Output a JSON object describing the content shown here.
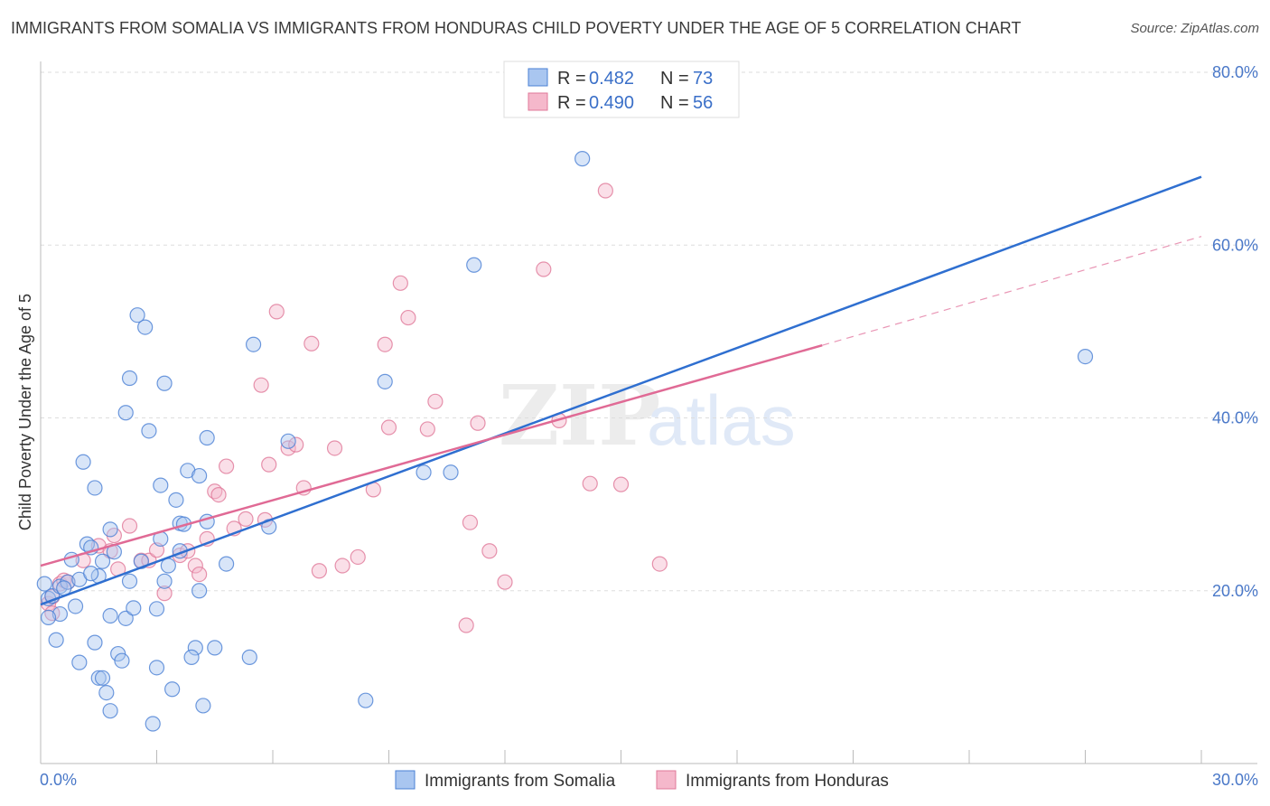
{
  "header": {
    "title": "IMMIGRANTS FROM SOMALIA VS IMMIGRANTS FROM HONDURAS CHILD POVERTY UNDER THE AGE OF 5 CORRELATION CHART",
    "source": "Source: ZipAtlas.com"
  },
  "watermark": {
    "zip": "ZIP",
    "atlas": "atlas"
  },
  "colors": {
    "somalia_fill": "#a9c6f0",
    "somalia_stroke": "#4a80d4",
    "somalia_line": "#2f6fd0",
    "honduras_fill": "#f5b8cb",
    "honduras_stroke": "#e07898",
    "honduras_line": "#e06a95",
    "tick_text": "#4a78c8",
    "grid": "#dddddd"
  },
  "chart_data": {
    "type": "scatter",
    "title": "IMMIGRANTS FROM SOMALIA VS IMMIGRANTS FROM HONDURAS CHILD POVERTY UNDER THE AGE OF 5 CORRELATION CHART",
    "xlabel": "",
    "ylabel": "Child Poverty Under the Age of 5",
    "xlim": [
      0,
      30
    ],
    "ylim": [
      0,
      80
    ],
    "x_tick_labels": [
      "0.0%",
      "30.0%"
    ],
    "y_ticks": [
      20,
      40,
      60,
      80
    ],
    "y_tick_labels": [
      "20.0%",
      "40.0%",
      "60.0%",
      "80.0%"
    ],
    "grid": true,
    "legend_position": "top-center",
    "legend": [
      {
        "series": "Immigrants from Somalia",
        "r_label": "R =",
        "r_value": "0.482",
        "n_label": "N =",
        "n_value": "73"
      },
      {
        "series": "Immigrants from Honduras",
        "r_label": "R =",
        "r_value": "0.490",
        "n_label": "N =",
        "n_value": "56"
      }
    ],
    "series": [
      {
        "name": "Immigrants from Somalia",
        "trend": {
          "x": [
            0,
            30
          ],
          "y": [
            18.4,
            67.9
          ],
          "dashed_extension": false
        },
        "points": [
          [
            0.1,
            20.8
          ],
          [
            0.2,
            19.1
          ],
          [
            0.3,
            19.4
          ],
          [
            0.5,
            20.5
          ],
          [
            0.5,
            17.3
          ],
          [
            0.4,
            14.3
          ],
          [
            0.7,
            21.0
          ],
          [
            0.6,
            20.3
          ],
          [
            0.8,
            23.6
          ],
          [
            1.0,
            21.3
          ],
          [
            0.9,
            18.2
          ],
          [
            1.2,
            25.4
          ],
          [
            1.3,
            25.0
          ],
          [
            1.1,
            34.9
          ],
          [
            1.4,
            31.9
          ],
          [
            1.6,
            23.4
          ],
          [
            1.5,
            21.7
          ],
          [
            1.8,
            27.1
          ],
          [
            1.9,
            24.5
          ],
          [
            1.8,
            17.1
          ],
          [
            2.0,
            12.7
          ],
          [
            1.5,
            9.9
          ],
          [
            1.6,
            9.9
          ],
          [
            1.7,
            8.2
          ],
          [
            1.8,
            6.1
          ],
          [
            1.0,
            11.7
          ],
          [
            1.4,
            14.0
          ],
          [
            2.1,
            11.9
          ],
          [
            2.2,
            16.8
          ],
          [
            2.3,
            21.1
          ],
          [
            2.4,
            18.0
          ],
          [
            2.6,
            23.4
          ],
          [
            2.7,
            50.5
          ],
          [
            2.5,
            51.9
          ],
          [
            2.3,
            44.6
          ],
          [
            2.2,
            40.6
          ],
          [
            2.8,
            38.5
          ],
          [
            3.2,
            44.0
          ],
          [
            3.1,
            32.2
          ],
          [
            3.3,
            22.9
          ],
          [
            3.2,
            21.1
          ],
          [
            3.0,
            17.9
          ],
          [
            3.0,
            11.1
          ],
          [
            2.9,
            4.6
          ],
          [
            3.5,
            30.5
          ],
          [
            3.6,
            27.8
          ],
          [
            3.7,
            27.7
          ],
          [
            3.6,
            24.6
          ],
          [
            3.8,
            33.9
          ],
          [
            4.1,
            33.3
          ],
          [
            4.3,
            37.7
          ],
          [
            4.3,
            28.0
          ],
          [
            4.1,
            20.0
          ],
          [
            4.0,
            13.4
          ],
          [
            3.9,
            12.3
          ],
          [
            4.5,
            13.4
          ],
          [
            4.2,
            6.7
          ],
          [
            3.4,
            8.6
          ],
          [
            4.8,
            23.1
          ],
          [
            5.4,
            12.3
          ],
          [
            5.5,
            48.5
          ],
          [
            5.9,
            27.4
          ],
          [
            6.4,
            37.3
          ],
          [
            8.4,
            7.3
          ],
          [
            8.9,
            44.2
          ],
          [
            9.9,
            33.7
          ],
          [
            10.6,
            33.7
          ],
          [
            11.2,
            57.7
          ],
          [
            14.0,
            70.0
          ],
          [
            27.0,
            47.1
          ],
          [
            0.2,
            16.9
          ],
          [
            1.3,
            22.0
          ],
          [
            3.1,
            26.0
          ]
        ]
      },
      {
        "name": "Immigrants from Honduras",
        "trend": {
          "x": [
            0,
            20.2
          ],
          "y": [
            22.9,
            48.4
          ],
          "dashed_extension": true,
          "dashed_to": {
            "x": 30,
            "y": 61.0
          }
        },
        "points": [
          [
            0.2,
            18.5
          ],
          [
            0.3,
            17.4
          ],
          [
            0.3,
            19.3
          ],
          [
            0.5,
            20.8
          ],
          [
            0.6,
            21.2
          ],
          [
            0.7,
            21.0
          ],
          [
            1.1,
            23.5
          ],
          [
            1.5,
            25.2
          ],
          [
            1.8,
            24.6
          ],
          [
            1.9,
            26.4
          ],
          [
            2.0,
            22.5
          ],
          [
            2.3,
            27.5
          ],
          [
            2.6,
            23.5
          ],
          [
            2.8,
            23.5
          ],
          [
            3.0,
            24.7
          ],
          [
            3.2,
            19.7
          ],
          [
            3.6,
            24.1
          ],
          [
            3.8,
            24.6
          ],
          [
            4.0,
            22.9
          ],
          [
            4.1,
            21.9
          ],
          [
            4.3,
            26.0
          ],
          [
            4.5,
            31.5
          ],
          [
            4.6,
            31.1
          ],
          [
            4.8,
            34.4
          ],
          [
            5.0,
            27.2
          ],
          [
            5.3,
            28.3
          ],
          [
            5.7,
            43.8
          ],
          [
            5.8,
            28.2
          ],
          [
            5.9,
            34.6
          ],
          [
            6.1,
            52.3
          ],
          [
            6.4,
            36.5
          ],
          [
            6.6,
            36.9
          ],
          [
            6.8,
            31.9
          ],
          [
            7.0,
            48.6
          ],
          [
            7.2,
            22.3
          ],
          [
            7.6,
            36.5
          ],
          [
            7.8,
            22.9
          ],
          [
            8.2,
            23.9
          ],
          [
            8.6,
            31.7
          ],
          [
            8.9,
            48.5
          ],
          [
            9.0,
            38.9
          ],
          [
            9.3,
            55.6
          ],
          [
            9.5,
            51.6
          ],
          [
            10.0,
            38.7
          ],
          [
            10.2,
            41.9
          ],
          [
            11.0,
            16.0
          ],
          [
            11.1,
            27.9
          ],
          [
            11.3,
            39.4
          ],
          [
            11.6,
            24.6
          ],
          [
            12.0,
            21.0
          ],
          [
            13.0,
            57.2
          ],
          [
            13.4,
            39.7
          ],
          [
            14.2,
            32.4
          ],
          [
            14.6,
            66.3
          ],
          [
            15.0,
            32.3
          ],
          [
            16.0,
            23.1
          ]
        ]
      }
    ]
  }
}
